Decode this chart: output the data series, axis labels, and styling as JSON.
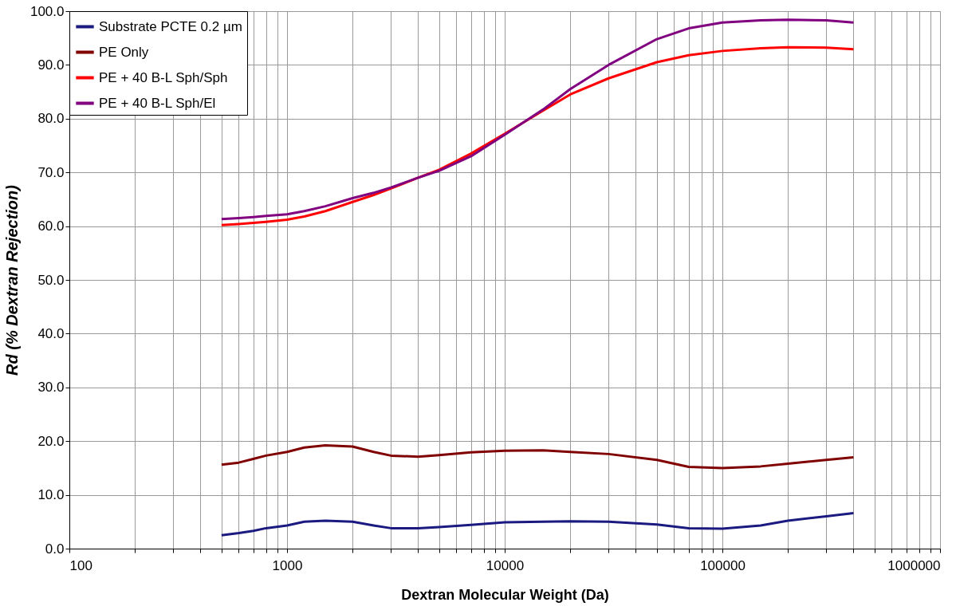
{
  "chart_data": {
    "type": "line",
    "xlabel": "Dextran Molecular Weight (Da)",
    "ylabel": "Rd (% Dextran Rejection)",
    "x": [
      500,
      600,
      700,
      800,
      1000,
      1200,
      1500,
      2000,
      2500,
      3000,
      4000,
      5000,
      7000,
      10000,
      15000,
      20000,
      30000,
      50000,
      70000,
      100000,
      150000,
      200000,
      300000,
      400000
    ],
    "series": [
      {
        "name": "Substrate PCTE 0.2 µm",
        "color": "#1a1a80",
        "values": [
          2.5,
          2.9,
          3.3,
          3.8,
          4.3,
          5.0,
          5.2,
          5.0,
          4.3,
          3.8,
          3.8,
          4.0,
          4.4,
          4.9,
          5.0,
          5.1,
          5.0,
          4.5,
          3.8,
          3.7,
          4.3,
          5.2,
          6.0,
          6.6
        ]
      },
      {
        "name": "PE Only",
        "color": "#800000",
        "values": [
          15.6,
          16.0,
          16.7,
          17.3,
          18.0,
          18.8,
          19.2,
          19.0,
          18.0,
          17.3,
          17.1,
          17.4,
          17.9,
          18.2,
          18.3,
          18.0,
          17.6,
          16.5,
          15.2,
          15.0,
          15.3,
          15.8,
          16.5,
          17.0
        ]
      },
      {
        "name": "PE + 40 B-L Sph/Sph",
        "color": "#ff0000",
        "values": [
          60.2,
          60.4,
          60.6,
          60.8,
          61.2,
          61.8,
          62.8,
          64.5,
          65.8,
          67.0,
          69.0,
          70.5,
          73.5,
          77.2,
          81.5,
          84.5,
          87.5,
          90.5,
          91.8,
          92.6,
          93.1,
          93.3,
          93.2,
          92.9
        ]
      },
      {
        "name": "PE + 40 B-L Sph/El",
        "color": "#800080",
        "values": [
          61.3,
          61.5,
          61.7,
          61.9,
          62.2,
          62.8,
          63.7,
          65.2,
          66.2,
          67.2,
          69.0,
          70.3,
          73.0,
          77.0,
          81.7,
          85.5,
          90.0,
          94.8,
          96.8,
          97.9,
          98.3,
          98.4,
          98.3,
          97.9
        ]
      }
    ],
    "log": "x",
    "xlim": [
      100,
      1000000
    ],
    "ylim": [
      0,
      100
    ],
    "xticks": [
      100,
      {
        "value": 200,
        "label": null
      },
      {
        "value": 300,
        "label": null
      },
      {
        "value": 400,
        "label": null
      },
      {
        "value": 500,
        "label": null
      },
      {
        "value": 600,
        "label": null
      },
      {
        "value": 700,
        "label": null
      },
      {
        "value": 800,
        "label": null
      },
      {
        "value": 900,
        "label": null
      },
      1000,
      {
        "value": 2000,
        "label": null
      },
      {
        "value": 3000,
        "label": null
      },
      {
        "value": 4000,
        "label": null
      },
      {
        "value": 5000,
        "label": null
      },
      {
        "value": 6000,
        "label": null
      },
      {
        "value": 7000,
        "label": null
      },
      {
        "value": 8000,
        "label": null
      },
      {
        "value": 9000,
        "label": null
      },
      10000,
      {
        "value": 20000,
        "label": null
      },
      {
        "value": 30000,
        "label": null
      },
      {
        "value": 40000,
        "label": null
      },
      {
        "value": 50000,
        "label": null
      },
      {
        "value": 60000,
        "label": null
      },
      {
        "value": 70000,
        "label": null
      },
      {
        "value": 80000,
        "label": null
      },
      {
        "value": 90000,
        "label": null
      },
      100000,
      {
        "value": 200000,
        "label": null
      },
      {
        "value": 300000,
        "label": null
      },
      {
        "value": 400000,
        "label": null
      },
      {
        "value": 500000,
        "label": null
      },
      {
        "value": 600000,
        "label": null
      },
      {
        "value": 700000,
        "label": null
      },
      {
        "value": 800000,
        "label": null
      },
      {
        "value": 900000,
        "label": null
      },
      1000000
    ],
    "yticks": [
      {
        "value": 0,
        "label": "0.0"
      },
      {
        "value": 10,
        "label": "10.0"
      },
      {
        "value": 20,
        "label": "20.0"
      },
      {
        "value": 30,
        "label": "30.0"
      },
      {
        "value": 40,
        "label": "40.0"
      },
      {
        "value": 50,
        "label": "50.0"
      },
      {
        "value": 60,
        "label": "60.0"
      },
      {
        "value": 70,
        "label": "70.0"
      },
      {
        "value": 80,
        "label": "80.0"
      },
      {
        "value": 90,
        "label": "90.0"
      },
      {
        "value": 100,
        "label": "100.0"
      }
    ],
    "grid": true,
    "legend": "top left",
    "marker": "none",
    "line_style": "solid"
  }
}
